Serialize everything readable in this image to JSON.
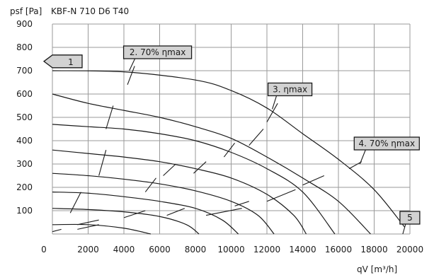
{
  "chart_data": {
    "type": "line",
    "ylabel": "psf [Pa]",
    "model": "KBF-N 710 D6 T40",
    "xlabel": "qV [m³/h]",
    "xlim": [
      0,
      20000
    ],
    "ylim": [
      0,
      900
    ],
    "x_ticks": [
      "0",
      "2000",
      "4000",
      "6000",
      "8000",
      "10000",
      "12000",
      "14000",
      "16000",
      "18000",
      "20000"
    ],
    "y_ticks": [
      "100",
      "200",
      "300",
      "400",
      "500",
      "600",
      "700",
      "800",
      "900"
    ],
    "grid": true,
    "series": [
      {
        "points": [
          [
            0,
            700
          ],
          [
            4000,
            695
          ],
          [
            8000,
            660
          ],
          [
            10000,
            615
          ],
          [
            12000,
            540
          ],
          [
            14000,
            430
          ],
          [
            16000,
            320
          ],
          [
            18000,
            190
          ],
          [
            19700,
            30
          ]
        ]
      },
      {
        "points": [
          [
            0,
            600
          ],
          [
            2000,
            560
          ],
          [
            4000,
            530
          ],
          [
            6000,
            500
          ],
          [
            8000,
            460
          ],
          [
            10000,
            410
          ],
          [
            12000,
            330
          ],
          [
            14000,
            240
          ],
          [
            16000,
            140
          ],
          [
            17800,
            0
          ]
        ]
      },
      {
        "points": [
          [
            0,
            470
          ],
          [
            2000,
            460
          ],
          [
            4000,
            450
          ],
          [
            6000,
            430
          ],
          [
            8000,
            400
          ],
          [
            10000,
            350
          ],
          [
            12000,
            280
          ],
          [
            14000,
            180
          ],
          [
            15800,
            0
          ]
        ]
      },
      {
        "points": [
          [
            0,
            360
          ],
          [
            2000,
            345
          ],
          [
            4000,
            330
          ],
          [
            6000,
            310
          ],
          [
            8000,
            280
          ],
          [
            10000,
            240
          ],
          [
            12000,
            170
          ],
          [
            13500,
            80
          ],
          [
            14200,
            0
          ]
        ]
      },
      {
        "points": [
          [
            0,
            260
          ],
          [
            2000,
            250
          ],
          [
            4000,
            235
          ],
          [
            6000,
            215
          ],
          [
            8000,
            185
          ],
          [
            10000,
            140
          ],
          [
            11500,
            80
          ],
          [
            12400,
            0
          ]
        ]
      },
      {
        "points": [
          [
            0,
            180
          ],
          [
            2000,
            175
          ],
          [
            4000,
            160
          ],
          [
            6000,
            140
          ],
          [
            8000,
            110
          ],
          [
            9500,
            60
          ],
          [
            10400,
            0
          ]
        ]
      },
      {
        "points": [
          [
            0,
            110
          ],
          [
            2000,
            105
          ],
          [
            4000,
            95
          ],
          [
            6000,
            75
          ],
          [
            7500,
            40
          ],
          [
            8200,
            0
          ]
        ]
      },
      {
        "points": [
          [
            0,
            40
          ],
          [
            2000,
            40
          ],
          [
            4000,
            25
          ],
          [
            5500,
            0
          ]
        ]
      }
    ],
    "efficiency_marks": [
      [
        [
          4200,
          640
        ],
        [
          4600,
          720
        ]
      ],
      [
        [
          12000,
          480
        ],
        [
          12600,
          560
        ]
      ],
      [
        [
          16600,
          280
        ],
        [
          17300,
          310
        ]
      ],
      [
        [
          3000,
          450
        ],
        [
          3400,
          550
        ]
      ],
      [
        [
          2600,
          250
        ],
        [
          3000,
          360
        ]
      ],
      [
        [
          1000,
          90
        ],
        [
          1600,
          180
        ]
      ],
      [
        [
          0,
          10
        ],
        [
          500,
          20
        ]
      ],
      [
        [
          5200,
          180
        ],
        [
          5800,
          240
        ]
      ],
      [
        [
          6200,
          250
        ],
        [
          6900,
          300
        ]
      ],
      [
        [
          7900,
          260
        ],
        [
          8600,
          310
        ]
      ],
      [
        [
          9600,
          330
        ],
        [
          10200,
          390
        ]
      ],
      [
        [
          11000,
          380
        ],
        [
          11800,
          450
        ]
      ],
      [
        [
          1400,
          20
        ],
        [
          2600,
          40
        ]
      ],
      [
        [
          1400,
          40
        ],
        [
          2600,
          60
        ]
      ],
      [
        [
          4000,
          70
        ],
        [
          5200,
          100
        ]
      ],
      [
        [
          6400,
          80
        ],
        [
          7400,
          110
        ]
      ],
      [
        [
          8600,
          80
        ],
        [
          10600,
          110
        ]
      ],
      [
        [
          10200,
          120
        ],
        [
          11000,
          140
        ]
      ],
      [
        [
          12000,
          140
        ],
        [
          13600,
          190
        ]
      ],
      [
        [
          14000,
          210
        ],
        [
          15200,
          250
        ]
      ]
    ],
    "annotations": [
      {
        "label": "1",
        "x": 0,
        "y": 740
      },
      {
        "label": "2. 70% ηmax",
        "x": 4300,
        "y": 700
      },
      {
        "label": "3. ηmax",
        "x": 12300,
        "y": 535
      },
      {
        "label": "4. 70% ηmax",
        "x": 17200,
        "y": 300
      },
      {
        "label": "5",
        "x": 19600,
        "y": 0
      }
    ]
  }
}
